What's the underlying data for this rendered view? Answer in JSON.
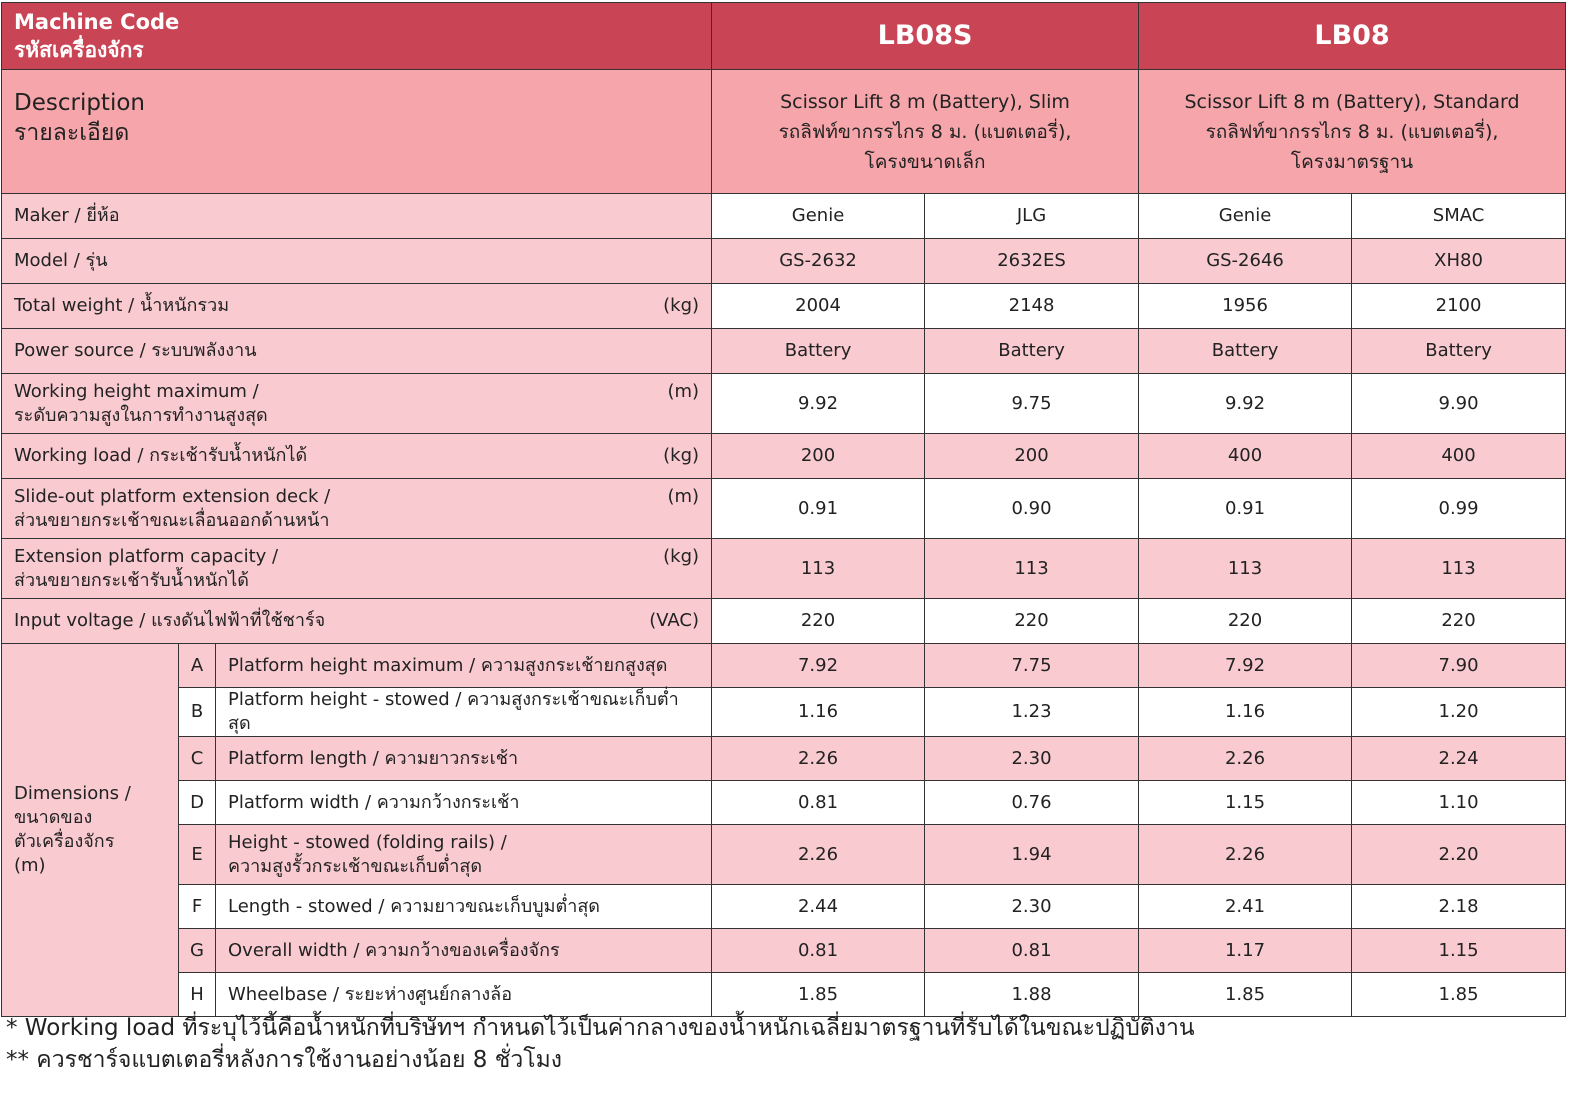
{
  "header": {
    "title_en": "Machine Code",
    "title_th": "รหัสเครื่องจักร",
    "groups": [
      "LB08S",
      "LB08"
    ]
  },
  "description": {
    "label_en": "Description",
    "label_th": "รายละเอียด",
    "values": [
      [
        "Scissor Lift 8 m (Battery), Slim",
        "รถลิฟท์ขากรรไกร 8 ม. (แบตเตอรี่),",
        "โครงขนาดเล็ก"
      ],
      [
        "Scissor Lift 8 m (Battery), Standard",
        "รถลิฟท์ขากรรไกร 8 ม. (แบตเตอรี่),",
        "โครงมาตรฐาน"
      ]
    ]
  },
  "rows": [
    {
      "label": "Maker / ยี่ห้อ",
      "unit": "",
      "values": [
        "Genie",
        "JLG",
        "Genie",
        "SMAC"
      ]
    },
    {
      "label": "Model / รุ่น",
      "unit": "",
      "values": [
        "GS-2632",
        "2632ES",
        "GS-2646",
        "XH80"
      ]
    },
    {
      "label": "Total weight / น้ำหนักรวม",
      "unit": "(kg)",
      "values": [
        "2004",
        "2148",
        "1956",
        "2100"
      ]
    },
    {
      "label": "Power source / ระบบพลังงาน",
      "unit": "",
      "values": [
        "Battery",
        "Battery",
        "Battery",
        "Battery"
      ]
    },
    {
      "label": "Working height maximum /\nระดับความสูงในการทำงานสูงสุด",
      "unit": "(m)",
      "values": [
        "9.92",
        "9.75",
        "9.92",
        "9.90"
      ]
    },
    {
      "label": "Working load / กระเช้ารับน้ำหนักได้",
      "unit": "(kg)",
      "values": [
        "200",
        "200",
        "400",
        "400"
      ]
    },
    {
      "label": "Slide-out platform extension deck /\nส่วนขยายกระเช้าขณะเลื่อนออกด้านหน้า",
      "unit": "(m)",
      "values": [
        "0.91",
        "0.90",
        "0.91",
        "0.99"
      ]
    },
    {
      "label": "Extension platform capacity /\nส่วนขยายกระเช้ารับน้ำหนักได้",
      "unit": "(kg)",
      "values": [
        "113",
        "113",
        "113",
        "113"
      ]
    },
    {
      "label": "Input voltage / แรงดันไฟฟ้าที่ใช้ชาร์จ",
      "unit": "(VAC)",
      "values": [
        "220",
        "220",
        "220",
        "220"
      ]
    }
  ],
  "dimensions": {
    "label": "Dimensions /\nขนาดของ\nตัวเครื่องจักร\n(m)",
    "rows": [
      {
        "letter": "A",
        "label": "Platform height maximum /  ความสูงกระเช้ายกสูงสุด",
        "values": [
          "7.92",
          "7.75",
          "7.92",
          "7.90"
        ]
      },
      {
        "letter": "B",
        "label": "Platform height - stowed / ความสูงกระเช้าขณะเก็บต่ำสุด",
        "values": [
          "1.16",
          "1.23",
          "1.16",
          "1.20"
        ]
      },
      {
        "letter": "C",
        "label": "Platform length  / ความยาวกระเช้า",
        "values": [
          "2.26",
          "2.30",
          "2.26",
          "2.24"
        ]
      },
      {
        "letter": "D",
        "label": "Platform width / ความกว้างกระเช้า",
        "values": [
          "0.81",
          "0.76",
          "1.15",
          "1.10"
        ]
      },
      {
        "letter": "E",
        "label": "Height - stowed (folding rails) /\nความสูงรั้วกระเช้าขณะเก็บต่ำสุด",
        "values": [
          "2.26",
          "1.94",
          "2.26",
          "2.20"
        ]
      },
      {
        "letter": "F",
        "label": "Length - stowed / ความยาวขณะเก็บบูมต่ำสุด",
        "values": [
          "2.44",
          "2.30",
          "2.41",
          "2.18"
        ]
      },
      {
        "letter": "G",
        "label": "Overall width /  ความกว้างของเครื่องจักร",
        "values": [
          "0.81",
          "0.81",
          "1.17",
          "1.15"
        ]
      },
      {
        "letter": "H",
        "label": "Wheelbase /  ระยะห่างศูนย์กลางล้อ",
        "values": [
          "1.85",
          "1.88",
          "1.85",
          "1.85"
        ]
      }
    ]
  },
  "footnotes": [
    "* Working load ที่ระบุไว้นี้คือน้ำหนักที่บริษัทฯ กำหนดไว้เป็นค่ากลางของน้ำหนักเฉลี่ยมาตรฐานที่รับได้ในขณะปฏิบัติงาน",
    "** ควรชาร์จแบตเตอรี่หลังการใช้งานอย่างน้อย 8 ชั่วโมง"
  ],
  "colors": {
    "header": "#c94455",
    "description": "#f6a6ab",
    "label": "#f9cbd0",
    "alt_row": "#f9cbd0"
  }
}
